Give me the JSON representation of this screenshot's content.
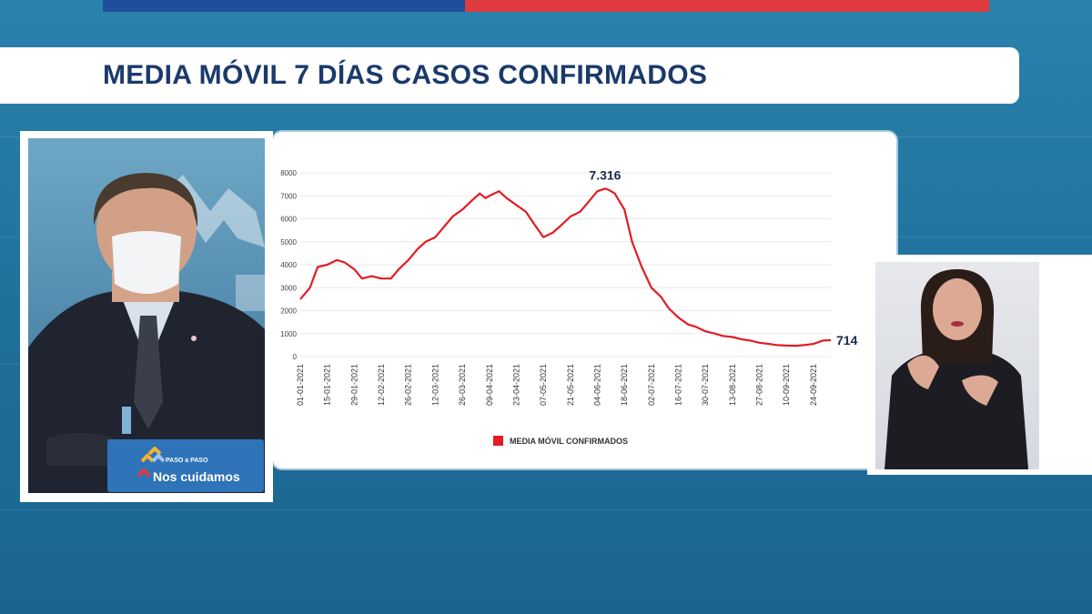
{
  "title": "MEDIA MÓVIL 7 DÍAS CASOS CONFIRMADOS",
  "logo": {
    "small_text": "PASO a PASO",
    "main_text": "Nos cuidamos"
  },
  "colors": {
    "accent_red": "#e03c3f",
    "navy": "#1b3a6b",
    "background_blue": "#2a82ad"
  },
  "chart_data": {
    "type": "line",
    "title": "MEDIA MÓVIL 7 DÍAS CASOS CONFIRMADOS",
    "xlabel": "",
    "ylabel": "",
    "ylim": [
      0,
      8000
    ],
    "yticks": [
      0,
      1000,
      2000,
      3000,
      4000,
      5000,
      6000,
      7000,
      8000
    ],
    "xticks": [
      "01-01-2021",
      "15-01-2021",
      "29-01-2021",
      "12-02-2021",
      "26-02-2021",
      "12-03-2021",
      "26-03-2021",
      "09-04-2021",
      "23-04-2021",
      "07-05-2021",
      "21-05-2021",
      "04-06-2021",
      "18-06-2021",
      "02-07-2021",
      "16-07-2021",
      "30-07-2021",
      "13-08-2021",
      "27-08-2021",
      "10-09-2021",
      "24-09-2021"
    ],
    "grid": true,
    "legend": "bottom",
    "series": [
      {
        "name": "MEDIA MÓVIL CONFIRMADOS",
        "color": "#e31b23",
        "x": [
          "01-01-2021",
          "06-01-2021",
          "10-01-2021",
          "15-01-2021",
          "20-01-2021",
          "24-01-2021",
          "29-01-2021",
          "02-02-2021",
          "07-02-2021",
          "12-02-2021",
          "17-02-2021",
          "21-02-2021",
          "26-02-2021",
          "03-03-2021",
          "07-03-2021",
          "12-03-2021",
          "17-03-2021",
          "21-03-2021",
          "26-03-2021",
          "31-03-2021",
          "04-04-2021",
          "07-04-2021",
          "09-04-2021",
          "14-04-2021",
          "18-04-2021",
          "23-04-2021",
          "28-04-2021",
          "02-05-2021",
          "07-05-2021",
          "12-05-2021",
          "16-05-2021",
          "21-05-2021",
          "26-05-2021",
          "30-05-2021",
          "04-06-2021",
          "08-06-2021",
          "10-06-2021",
          "13-06-2021",
          "18-06-2021",
          "22-06-2021",
          "27-06-2021",
          "02-07-2021",
          "07-07-2021",
          "11-07-2021",
          "16-07-2021",
          "21-07-2021",
          "25-07-2021",
          "30-07-2021",
          "04-08-2021",
          "08-08-2021",
          "13-08-2021",
          "18-08-2021",
          "22-08-2021",
          "27-08-2021",
          "01-09-2021",
          "05-09-2021",
          "10-09-2021",
          "15-09-2021",
          "19-09-2021",
          "24-09-2021",
          "29-09-2021",
          "03-10-2021"
        ],
        "y": [
          2500,
          3000,
          3900,
          4000,
          4200,
          4100,
          3800,
          3400,
          3500,
          3400,
          3400,
          3800,
          4200,
          4700,
          5000,
          5200,
          5700,
          6100,
          6400,
          6800,
          7100,
          6900,
          7000,
          7200,
          6900,
          6600,
          6300,
          5800,
          5200,
          5400,
          5700,
          6100,
          6300,
          6700,
          7200,
          7316,
          7250,
          7100,
          6400,
          5000,
          3900,
          3000,
          2600,
          2100,
          1700,
          1400,
          1300,
          1100,
          1000,
          900,
          850,
          750,
          700,
          600,
          550,
          500,
          480,
          470,
          500,
          550,
          700,
          714
        ]
      }
    ],
    "annotations": [
      {
        "label": "7.316",
        "x": "08-06-2021",
        "y": 7316
      },
      {
        "label": "714",
        "x": "03-10-2021",
        "y": 714
      }
    ]
  }
}
